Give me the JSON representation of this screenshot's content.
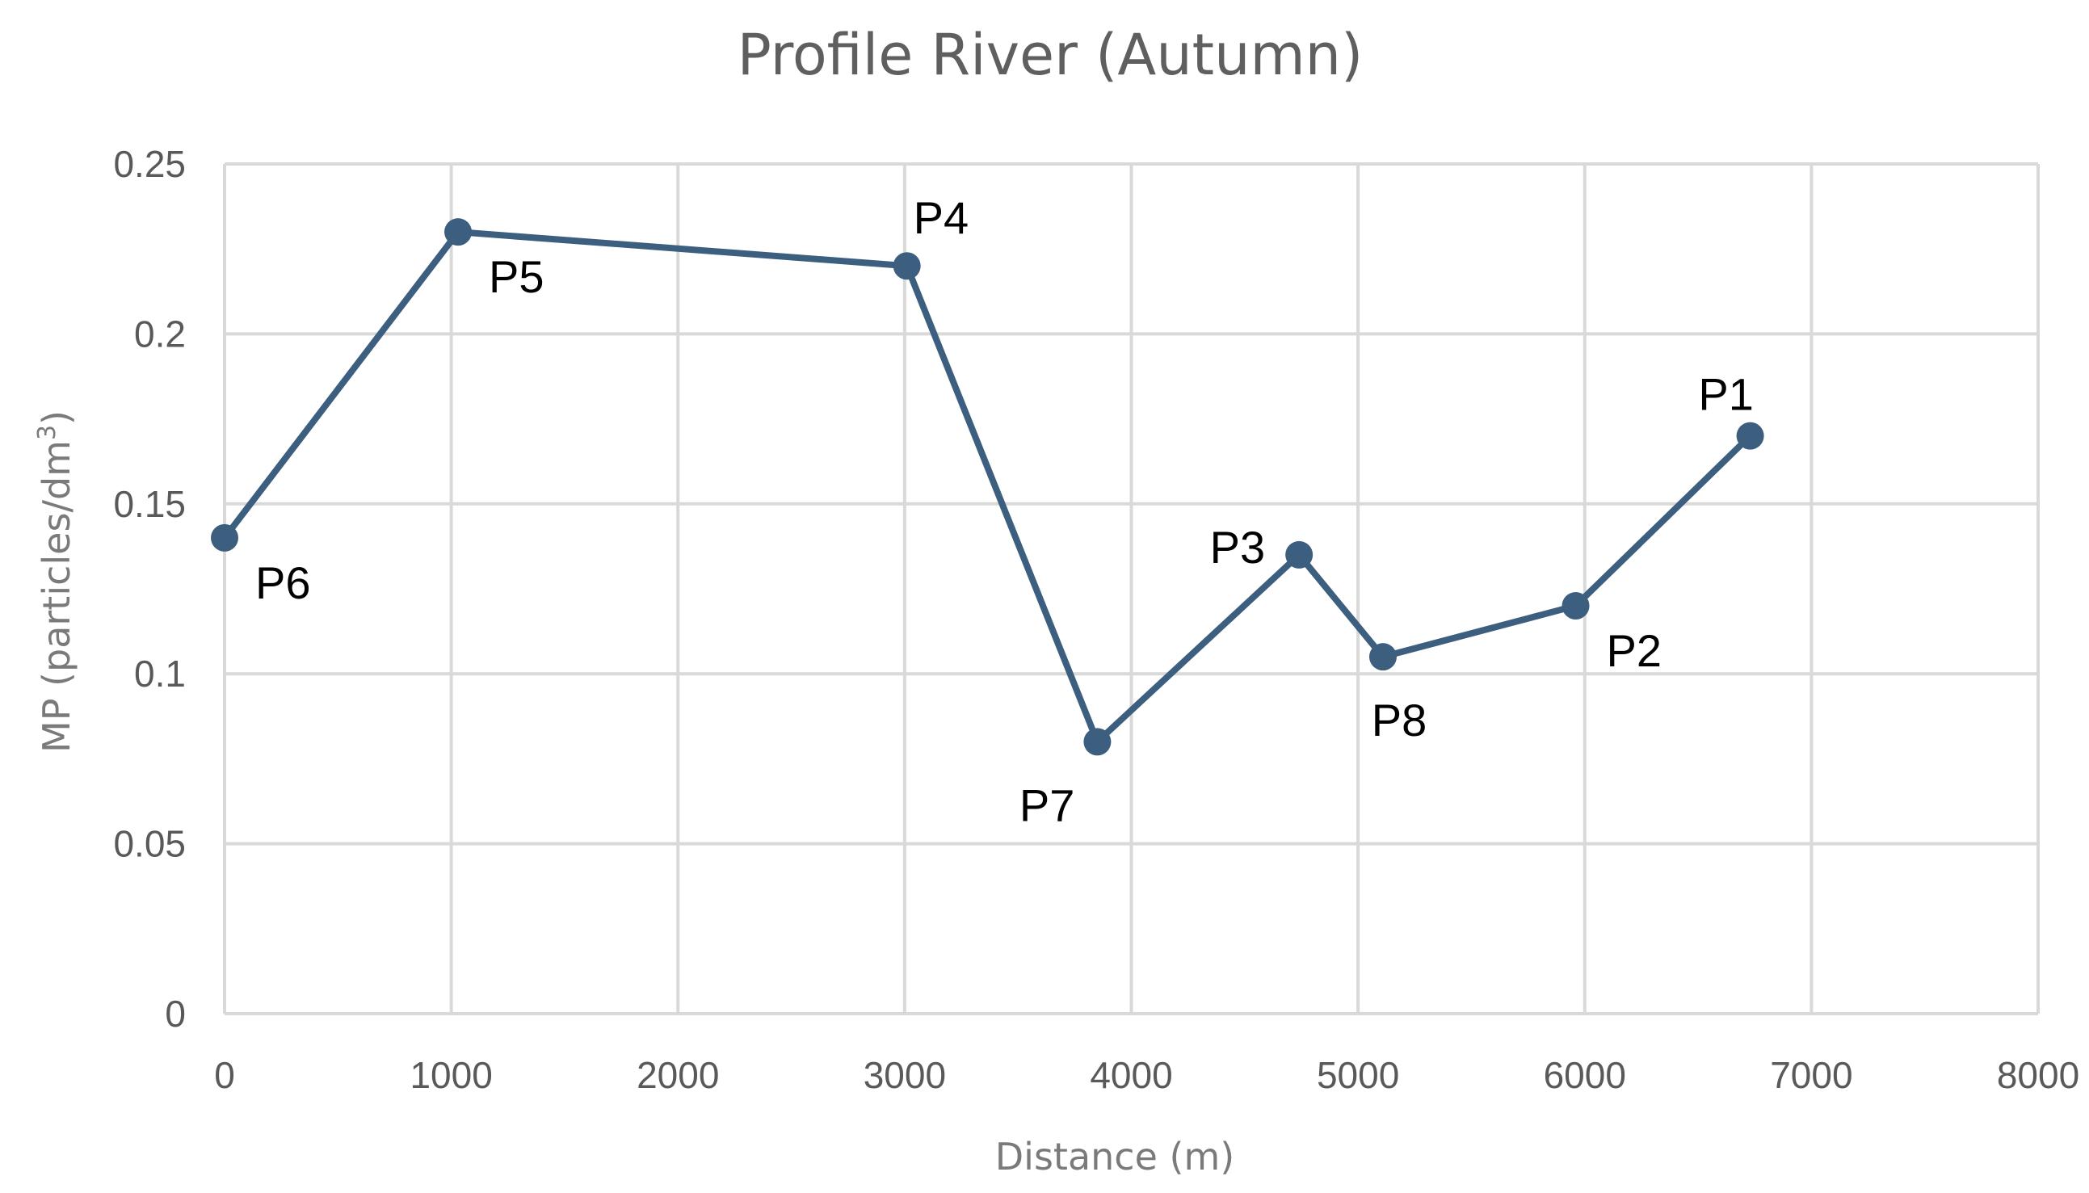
{
  "chart_data": {
    "type": "line",
    "title": "Profile River (Autumn)",
    "xlabel": "Distance (m)",
    "ylabel": "MP (particles/dm",
    "ylabel_superscript": "3",
    "ylabel_suffix": ")",
    "xlim": [
      0,
      8000
    ],
    "ylim": [
      0,
      0.25
    ],
    "xticks": [
      0,
      1000,
      2000,
      3000,
      4000,
      5000,
      6000,
      7000,
      8000
    ],
    "xtick_labels": [
      "0",
      "1000",
      "2000",
      "3000",
      "4000",
      "5000",
      "6000",
      "7000",
      "8000"
    ],
    "yticks": [
      0,
      0.05,
      0.1,
      0.15,
      0.2,
      0.25
    ],
    "ytick_labels": [
      "0",
      "0.05",
      "0.1",
      "0.15",
      "0.2",
      "0.25"
    ],
    "grid": true,
    "line_color": "#3d5f7f",
    "series": [
      {
        "name": "Profile River (Autumn)",
        "points": [
          {
            "label": "P6",
            "x": 0,
            "y": 0.14,
            "label_pos": "below-right"
          },
          {
            "label": "P5",
            "x": 1030,
            "y": 0.23,
            "label_pos": "below-right"
          },
          {
            "label": "P4",
            "x": 3010,
            "y": 0.22,
            "label_pos": "above-right"
          },
          {
            "label": "P7",
            "x": 3850,
            "y": 0.08,
            "label_pos": "below-left"
          },
          {
            "label": "P3",
            "x": 4740,
            "y": 0.135,
            "label_pos": "left"
          },
          {
            "label": "P8",
            "x": 5110,
            "y": 0.105,
            "label_pos": "below"
          },
          {
            "label": "P2",
            "x": 5960,
            "y": 0.12,
            "label_pos": "below-right"
          },
          {
            "label": "P1",
            "x": 6730,
            "y": 0.17,
            "label_pos": "above-left"
          }
        ]
      }
    ]
  }
}
